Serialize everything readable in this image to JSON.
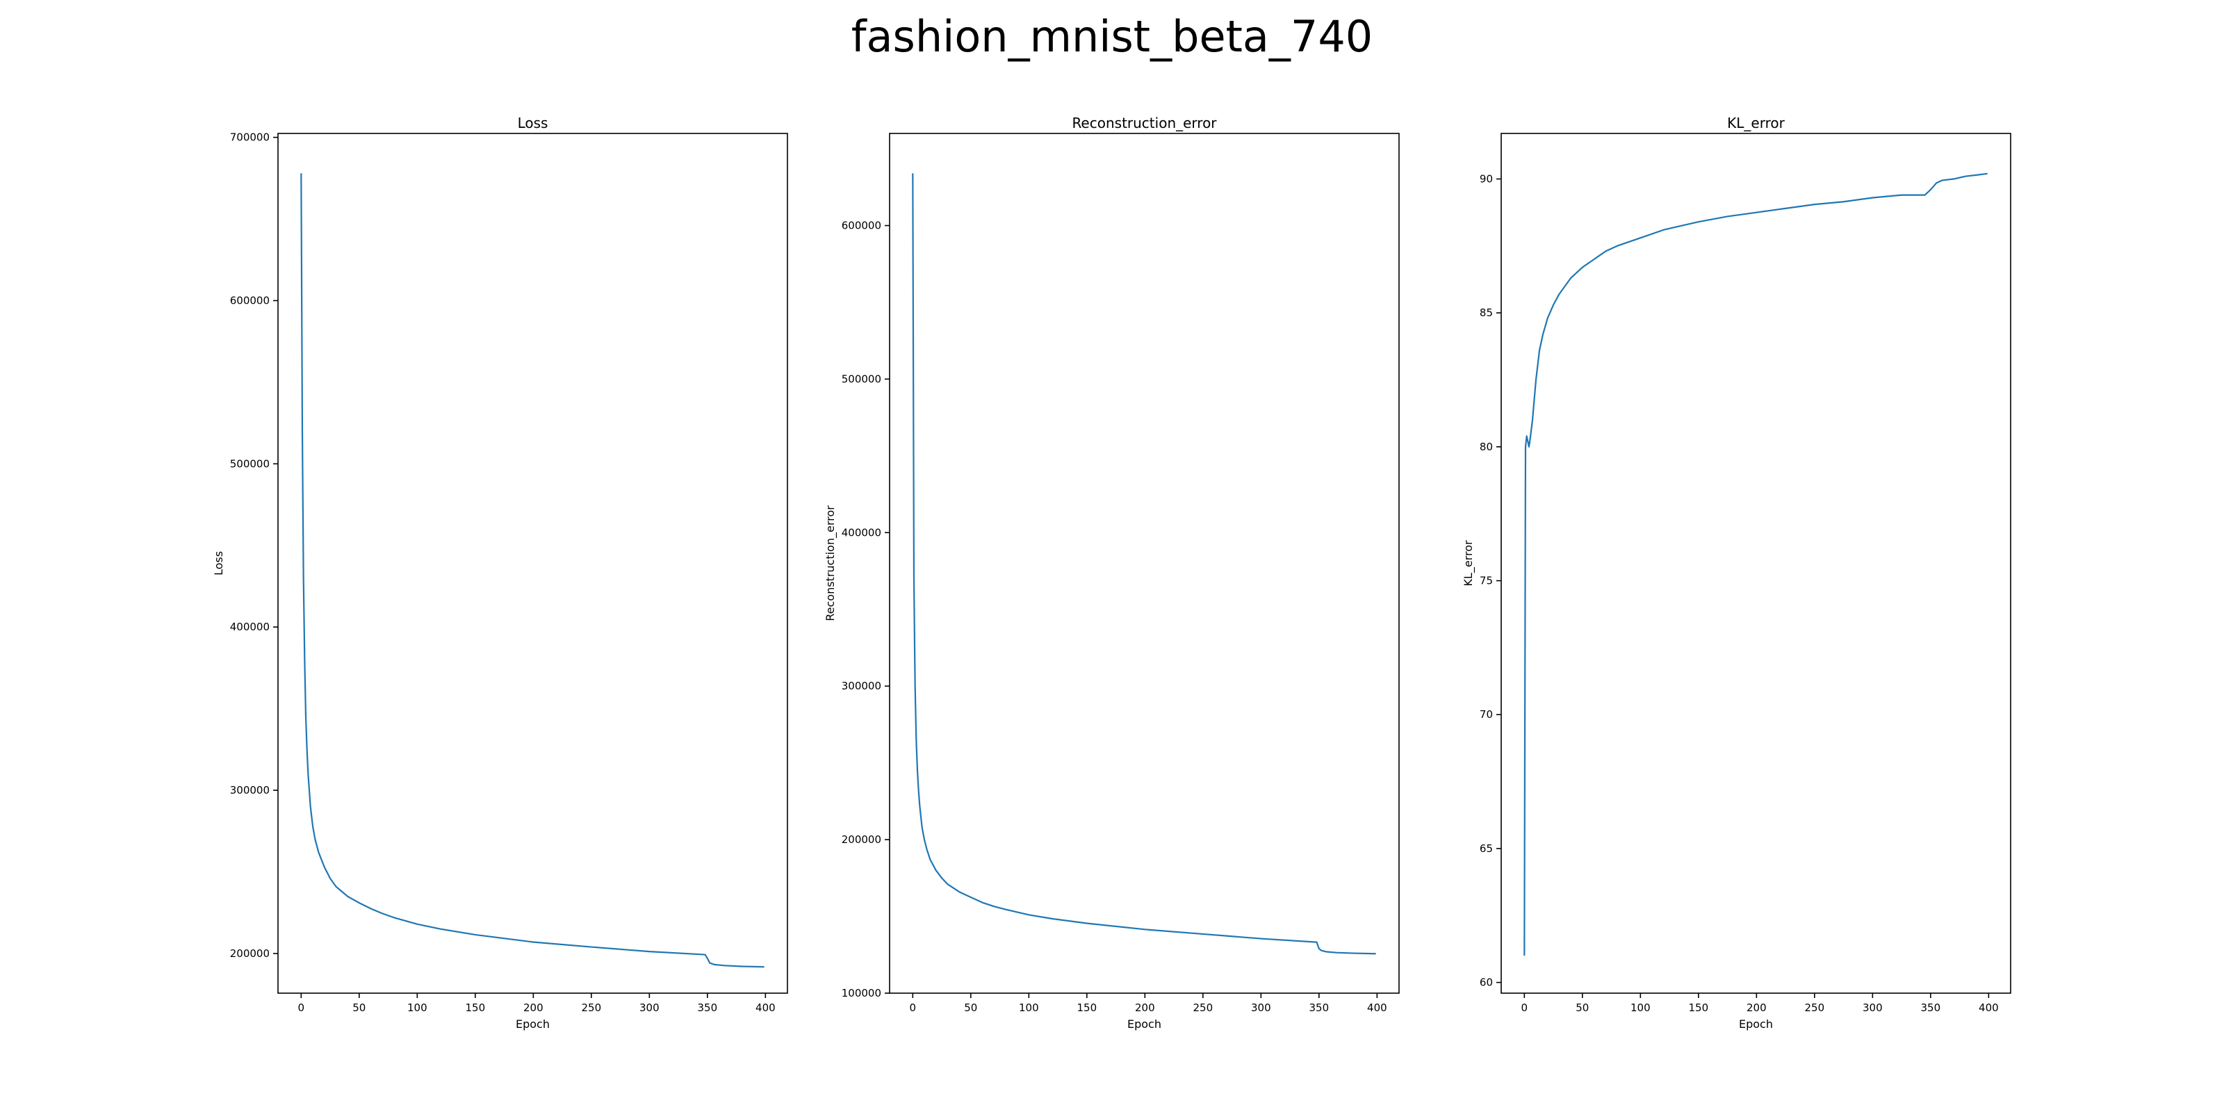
{
  "figure": {
    "title": "fashion_mnist_beta_740"
  },
  "chart_data": [
    {
      "type": "line",
      "title": "Loss",
      "xlabel": "Epoch",
      "ylabel": "Loss",
      "xlim": [
        -19.95,
        418.95
      ],
      "ylim": [
        175700,
        702400
      ],
      "xticks": [
        0,
        50,
        100,
        150,
        200,
        250,
        300,
        350,
        400
      ],
      "yticks": [
        200000,
        300000,
        400000,
        500000,
        600000,
        700000
      ],
      "color": "#1f77b4",
      "grid": false,
      "series": [
        {
          "x": [
            0,
            1,
            2,
            3,
            4,
            5,
            6,
            8,
            10,
            12,
            15,
            20,
            25,
            30,
            40,
            50,
            60,
            70,
            80,
            100,
            120,
            150,
            200,
            250,
            300,
            348,
            350,
            352,
            356,
            365,
            380,
            399
          ],
          "values": [
            678000,
            520000,
            430000,
            380000,
            345000,
            325000,
            310000,
            290000,
            278000,
            270000,
            262000,
            253000,
            246000,
            241000,
            235000,
            231000,
            227500,
            224500,
            222000,
            218000,
            215000,
            211500,
            207000,
            204000,
            201200,
            199300,
            197000,
            194200,
            193200,
            192600,
            192100,
            191800
          ]
        }
      ]
    },
    {
      "type": "line",
      "title": "Reconstruction_error",
      "xlabel": "Epoch",
      "ylabel": "Reconstruction_error",
      "xlim": [
        -19.95,
        418.95
      ],
      "ylim": [
        100000,
        660000
      ],
      "xticks": [
        0,
        50,
        100,
        150,
        200,
        250,
        300,
        350,
        400
      ],
      "yticks": [
        100000,
        200000,
        300000,
        400000,
        500000,
        600000
      ],
      "color": "#1f77b4",
      "grid": false,
      "series": [
        {
          "x": [
            0,
            1,
            2,
            3,
            4,
            5,
            6,
            8,
            10,
            12,
            15,
            20,
            25,
            30,
            40,
            50,
            60,
            70,
            80,
            100,
            120,
            150,
            200,
            250,
            300,
            348,
            350,
            352,
            356,
            365,
            380,
            399
          ],
          "values": [
            634000,
            370000,
            300000,
            265000,
            245000,
            232000,
            222000,
            208000,
            200000,
            194000,
            187000,
            180000,
            175000,
            171000,
            166000,
            162500,
            159000,
            156500,
            154500,
            151000,
            148500,
            145500,
            141500,
            138500,
            135500,
            133200,
            129000,
            127800,
            127000,
            126400,
            126000,
            125700
          ]
        }
      ]
    },
    {
      "type": "line",
      "title": "KL_error",
      "xlabel": "Epoch",
      "ylabel": "KL_error",
      "xlim": [
        -19.95,
        418.95
      ],
      "ylim": [
        59.6,
        91.7
      ],
      "xticks": [
        0,
        50,
        100,
        150,
        200,
        250,
        300,
        350,
        400
      ],
      "yticks": [
        60,
        65,
        70,
        75,
        80,
        85,
        90
      ],
      "color": "#1f77b4",
      "grid": false,
      "series": [
        {
          "x": [
            0,
            1,
            2,
            3,
            4,
            5,
            7,
            10,
            13,
            16,
            20,
            25,
            30,
            35,
            40,
            45,
            50,
            60,
            70,
            80,
            100,
            120,
            150,
            175,
            200,
            225,
            250,
            275,
            300,
            325,
            345,
            350,
            355,
            360,
            370,
            380,
            390,
            399
          ],
          "values": [
            61.0,
            80.0,
            80.4,
            80.2,
            80.0,
            80.3,
            81.0,
            82.5,
            83.6,
            84.2,
            84.8,
            85.3,
            85.7,
            86.0,
            86.3,
            86.5,
            86.7,
            87.0,
            87.3,
            87.5,
            87.8,
            88.1,
            88.4,
            88.6,
            88.75,
            88.9,
            89.05,
            89.15,
            89.3,
            89.4,
            89.4,
            89.6,
            89.85,
            89.95,
            90.0,
            90.1,
            90.15,
            90.2
          ]
        }
      ]
    }
  ]
}
